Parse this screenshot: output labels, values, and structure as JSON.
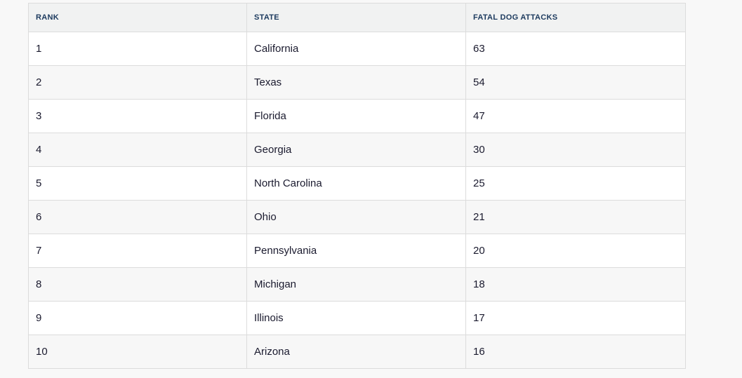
{
  "table": {
    "headers": [
      "RANK",
      "STATE",
      "FATAL DOG ATTACKS"
    ],
    "rows": [
      [
        "1",
        "California",
        "63"
      ],
      [
        "2",
        "Texas",
        "54"
      ],
      [
        "3",
        "Florida",
        "47"
      ],
      [
        "4",
        "Georgia",
        "30"
      ],
      [
        "5",
        "North Carolina",
        "25"
      ],
      [
        "6",
        "Ohio",
        "21"
      ],
      [
        "7",
        "Pennsylvania",
        "20"
      ],
      [
        "8",
        "Michigan",
        "18"
      ],
      [
        "9",
        "Illinois",
        "17"
      ],
      [
        "10",
        "Arizona",
        "16"
      ]
    ]
  }
}
